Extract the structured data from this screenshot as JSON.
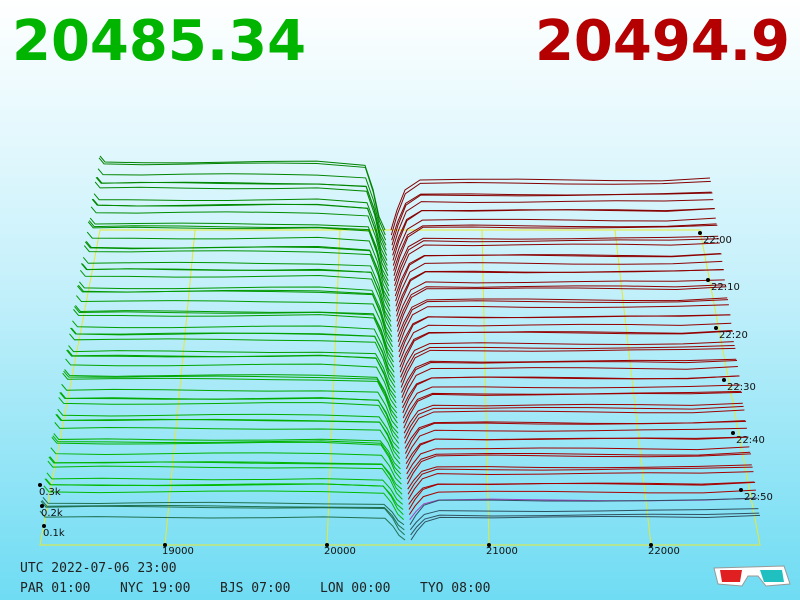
{
  "header": {
    "bid": "20485.34",
    "ask": "20494.9"
  },
  "axes": {
    "price_ticks": [
      "19000",
      "20000",
      "21000",
      "22000"
    ],
    "depth_ticks": [
      "0.3k",
      "0.2k",
      "0.1k"
    ],
    "time_ticks": [
      "22:00",
      "22:10",
      "22:20",
      "22:30",
      "22:40",
      "22:50"
    ]
  },
  "footer": {
    "utc": "UTC 2022-07-06 23:00",
    "zones": [
      "PAR 01:00",
      "NYC 19:00",
      "BJS 07:00",
      "LON 00:00",
      "TYO 08:00"
    ]
  }
}
